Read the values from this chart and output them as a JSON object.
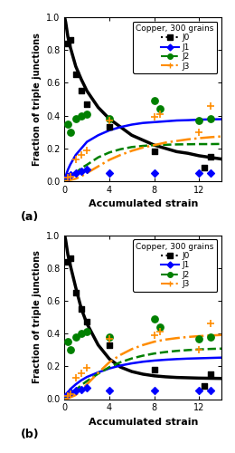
{
  "title": "Copper, 300 grains",
  "xlabel": "Accumulated strain",
  "ylabel": "Fraction of triple junctions",
  "xlim": [
    0,
    14
  ],
  "ylim": [
    0,
    1.0
  ],
  "xticks": [
    0,
    4,
    8,
    12
  ],
  "yticks": [
    0,
    0.2,
    0.4,
    0.6,
    0.8,
    1.0
  ],
  "exp_J0": [
    [
      0.3,
      0.84
    ],
    [
      0.5,
      0.86
    ],
    [
      1.0,
      0.65
    ],
    [
      1.5,
      0.55
    ],
    [
      2.0,
      0.47
    ],
    [
      4.0,
      0.33
    ],
    [
      8.0,
      0.18
    ],
    [
      12.5,
      0.08
    ],
    [
      13.0,
      0.15
    ]
  ],
  "exp_J1": [
    [
      0.3,
      0.03
    ],
    [
      0.5,
      0.04
    ],
    [
      1.0,
      0.05
    ],
    [
      1.5,
      0.06
    ],
    [
      2.0,
      0.07
    ],
    [
      4.0,
      0.05
    ],
    [
      8.0,
      0.05
    ],
    [
      12.0,
      0.05
    ],
    [
      13.0,
      0.05
    ]
  ],
  "exp_J2": [
    [
      0.3,
      0.35
    ],
    [
      0.5,
      0.3
    ],
    [
      1.0,
      0.38
    ],
    [
      1.5,
      0.4
    ],
    [
      2.0,
      0.41
    ],
    [
      4.0,
      0.38
    ],
    [
      8.0,
      0.49
    ],
    [
      8.5,
      0.44
    ],
    [
      12.0,
      0.37
    ],
    [
      13.0,
      0.38
    ]
  ],
  "exp_J3": [
    [
      0.3,
      0.02
    ],
    [
      0.5,
      0.03
    ],
    [
      1.0,
      0.13
    ],
    [
      1.5,
      0.16
    ],
    [
      2.0,
      0.19
    ],
    [
      4.0,
      0.37
    ],
    [
      8.0,
      0.39
    ],
    [
      8.5,
      0.41
    ],
    [
      12.0,
      0.3
    ],
    [
      13.0,
      0.46
    ]
  ],
  "curve_a_J0_x": [
    0.01,
    0.1,
    0.3,
    0.5,
    1.0,
    1.5,
    2.0,
    3.0,
    4.0,
    5.0,
    6.0,
    7.0,
    8.0,
    9.0,
    10.0,
    11.0,
    12.0,
    13.0,
    14.0
  ],
  "curve_a_J0_y": [
    1.0,
    0.97,
    0.88,
    0.82,
    0.7,
    0.62,
    0.55,
    0.45,
    0.38,
    0.33,
    0.28,
    0.25,
    0.22,
    0.2,
    0.18,
    0.17,
    0.155,
    0.145,
    0.135
  ],
  "curve_a_J1_x": [
    0.01,
    0.1,
    0.3,
    0.5,
    1.0,
    1.5,
    2.0,
    3.0,
    4.0,
    5.0,
    6.0,
    7.0,
    8.0,
    9.0,
    10.0,
    11.0,
    12.0,
    13.0,
    14.0
  ],
  "curve_a_J1_y": [
    0.0,
    0.03,
    0.07,
    0.1,
    0.16,
    0.2,
    0.24,
    0.28,
    0.31,
    0.33,
    0.345,
    0.355,
    0.36,
    0.365,
    0.37,
    0.372,
    0.375,
    0.377,
    0.378
  ],
  "curve_a_J2_x": [
    0.01,
    0.1,
    0.3,
    0.5,
    1.0,
    1.5,
    2.0,
    3.0,
    4.0,
    5.0,
    6.0,
    7.0,
    8.0,
    9.0,
    10.0,
    11.0,
    12.0,
    13.0,
    14.0
  ],
  "curve_a_J2_y": [
    0.0,
    0.003,
    0.01,
    0.02,
    0.05,
    0.08,
    0.1,
    0.145,
    0.175,
    0.195,
    0.208,
    0.215,
    0.22,
    0.222,
    0.224,
    0.225,
    0.226,
    0.226,
    0.227
  ],
  "curve_a_J3_x": [
    0.01,
    0.1,
    0.3,
    0.5,
    1.0,
    1.5,
    2.0,
    3.0,
    4.0,
    5.0,
    6.0,
    7.0,
    8.0,
    9.0,
    10.0,
    11.0,
    12.0,
    13.0,
    14.0
  ],
  "curve_a_J3_y": [
    0.0,
    0.001,
    0.003,
    0.007,
    0.015,
    0.03,
    0.05,
    0.09,
    0.13,
    0.16,
    0.185,
    0.205,
    0.22,
    0.235,
    0.245,
    0.255,
    0.262,
    0.268,
    0.273
  ],
  "curve_b_J0_x": [
    0.01,
    0.1,
    0.3,
    0.5,
    1.0,
    1.5,
    2.0,
    3.0,
    4.0,
    5.0,
    6.0,
    7.0,
    8.0,
    9.0,
    10.0,
    11.0,
    12.0,
    13.0,
    14.0
  ],
  "curve_b_J0_y": [
    1.0,
    0.97,
    0.88,
    0.82,
    0.68,
    0.55,
    0.46,
    0.33,
    0.245,
    0.195,
    0.168,
    0.152,
    0.142,
    0.136,
    0.132,
    0.13,
    0.128,
    0.127,
    0.126
  ],
  "curve_b_J1_x": [
    0.01,
    0.1,
    0.3,
    0.5,
    1.0,
    1.5,
    2.0,
    3.0,
    4.0,
    5.0,
    6.0,
    7.0,
    8.0,
    9.0,
    10.0,
    11.0,
    12.0,
    13.0,
    14.0
  ],
  "curve_b_J1_y": [
    0.0,
    0.015,
    0.04,
    0.06,
    0.09,
    0.115,
    0.135,
    0.163,
    0.187,
    0.205,
    0.218,
    0.228,
    0.235,
    0.24,
    0.244,
    0.247,
    0.249,
    0.251,
    0.253
  ],
  "curve_b_J2_x": [
    0.01,
    0.1,
    0.3,
    0.5,
    1.0,
    1.5,
    2.0,
    3.0,
    4.0,
    5.0,
    6.0,
    7.0,
    8.0,
    9.0,
    10.0,
    11.0,
    12.0,
    13.0,
    14.0
  ],
  "curve_b_J2_y": [
    0.0,
    0.003,
    0.012,
    0.025,
    0.055,
    0.085,
    0.11,
    0.155,
    0.195,
    0.225,
    0.248,
    0.265,
    0.278,
    0.287,
    0.294,
    0.299,
    0.303,
    0.306,
    0.308
  ],
  "curve_b_J3_x": [
    0.01,
    0.1,
    0.3,
    0.5,
    1.0,
    1.5,
    2.0,
    3.0,
    4.0,
    5.0,
    6.0,
    7.0,
    8.0,
    9.0,
    10.0,
    11.0,
    12.0,
    13.0,
    14.0
  ],
  "curve_b_J3_y": [
    0.0,
    0.001,
    0.004,
    0.01,
    0.025,
    0.055,
    0.09,
    0.16,
    0.225,
    0.27,
    0.305,
    0.33,
    0.35,
    0.363,
    0.372,
    0.379,
    0.384,
    0.388,
    0.391
  ],
  "color_J0": "#000000",
  "color_J1": "#0000ff",
  "color_J2": "#008000",
  "color_J3": "#ff8c00",
  "label_a": "(a)",
  "label_b": "(b)"
}
